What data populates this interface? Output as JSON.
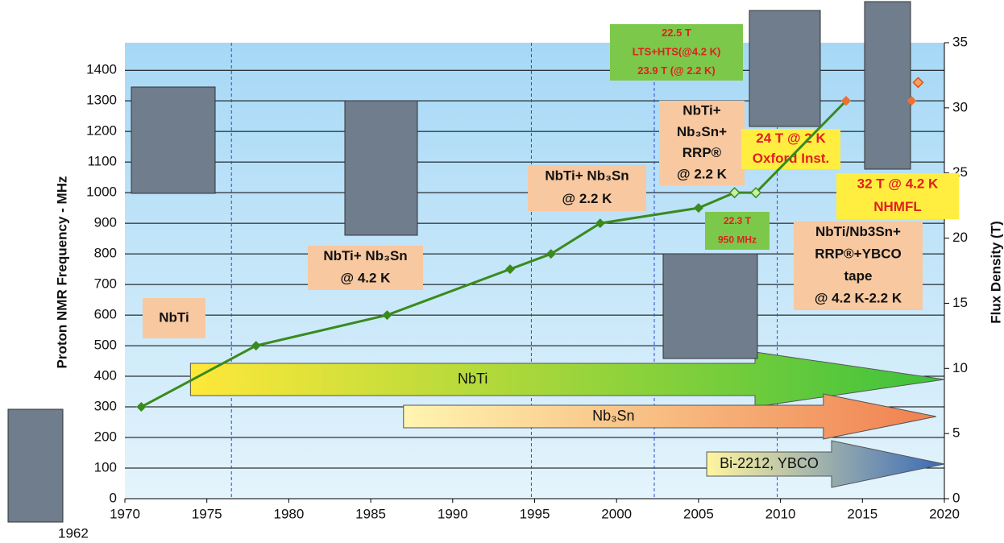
{
  "chart_data": {
    "type": "line",
    "y_label": "Proton NMR Frequency - MHz",
    "y2_label": "Flux Density  (T)",
    "x_note": "1962",
    "xlim": [
      1970,
      2020
    ],
    "xticks": [
      1970,
      1975,
      1980,
      1985,
      1990,
      1995,
      2000,
      2005,
      2010,
      2015,
      2020
    ],
    "ylim": [
      0,
      1490
    ],
    "yticks": [
      0,
      100,
      200,
      300,
      400,
      500,
      600,
      700,
      800,
      900,
      1000,
      1100,
      1200,
      1300,
      1400
    ],
    "y2lim": [
      0,
      35
    ],
    "y2ticks": [
      0,
      5,
      10,
      15,
      20,
      25,
      30,
      35
    ],
    "grid": true,
    "vlines": [
      1976.5,
      1994.8,
      2002.3,
      2009.8
    ],
    "series": [
      {
        "color": "#3a8a1c",
        "x": [
          1971,
          1978,
          1986,
          1993.5,
          1996,
          1999,
          2005,
          2007.2,
          2008.5,
          2014
        ],
        "values": [
          300,
          500,
          600,
          750,
          800,
          900,
          950,
          1000,
          1000,
          1300
        ]
      },
      {
        "color": "#f07030",
        "x": [
          2014,
          2018,
          2018.4
        ],
        "values": [
          1300,
          1300,
          1360
        ]
      }
    ],
    "arrows": [
      {
        "label": "NbTi",
        "start": 1974,
        "end": 2020
      },
      {
        "label": "Nb₃Sn",
        "start": 1987,
        "end": 2019.5
      },
      {
        "label": "Bi-2212, YBCO",
        "start": 2005.5,
        "end": 2020
      }
    ],
    "annotations": [
      {
        "lines": [
          "NbTi"
        ]
      },
      {
        "lines": [
          "NbTi+ Nb₃Sn",
          "@ 4.2 K"
        ]
      },
      {
        "lines": [
          "NbTi+ Nb₃Sn",
          "@ 2.2 K"
        ]
      },
      {
        "lines": [
          "NbTi+",
          "Nb₃Sn+",
          "RRP®",
          "@ 2.2 K"
        ]
      },
      {
        "lines": [
          "22.5 T",
          "LTS+HTS(@4.2 K)",
          "23.9 T (@ 2.2 K)"
        ]
      },
      {
        "lines": [
          "24 T @ 2 K",
          "Oxford Inst."
        ]
      },
      {
        "lines": [
          "32 T @ 4.2 K",
          "NHMFL"
        ]
      },
      {
        "lines": [
          "22.3 T",
          "950 MHz"
        ]
      },
      {
        "lines": [
          "NbTi/Nb3Sn+",
          "RRP®+YBCO",
          "tape",
          "@ 4.2 K-2.2 K"
        ]
      }
    ]
  }
}
